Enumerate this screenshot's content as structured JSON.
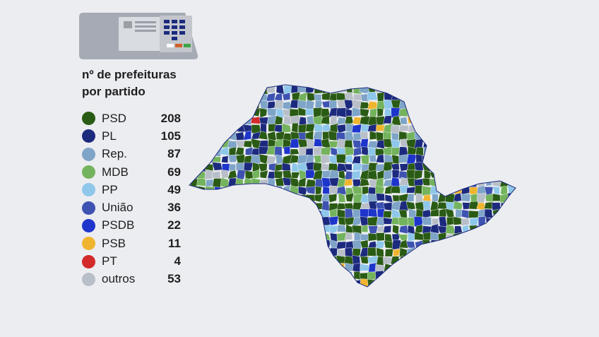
{
  "legend": {
    "title_line1": "nº de prefeituras",
    "title_line2": "por partido",
    "items": [
      {
        "party": "PSD",
        "count": "208",
        "color": "#2a5b14"
      },
      {
        "party": "PL",
        "count": "105",
        "color": "#1c2a7e"
      },
      {
        "party": "Rep.",
        "count": "87",
        "color": "#7ea4c8"
      },
      {
        "party": "MDB",
        "count": "69",
        "color": "#74b35d"
      },
      {
        "party": "PP",
        "count": "49",
        "color": "#8ec7ea"
      },
      {
        "party": "União",
        "count": "36",
        "color": "#3d52b1"
      },
      {
        "party": "PSDB",
        "count": "22",
        "color": "#1e35cc"
      },
      {
        "party": "PSB",
        "count": "11",
        "color": "#f0b52f"
      },
      {
        "party": "PT",
        "count": "4",
        "color": "#d32a2a"
      },
      {
        "party": "outros",
        "count": "53",
        "color": "#b9bfc8"
      }
    ]
  },
  "icons": {
    "urn": "voting-machine-icon",
    "map": "sao-paulo-state-map"
  }
}
